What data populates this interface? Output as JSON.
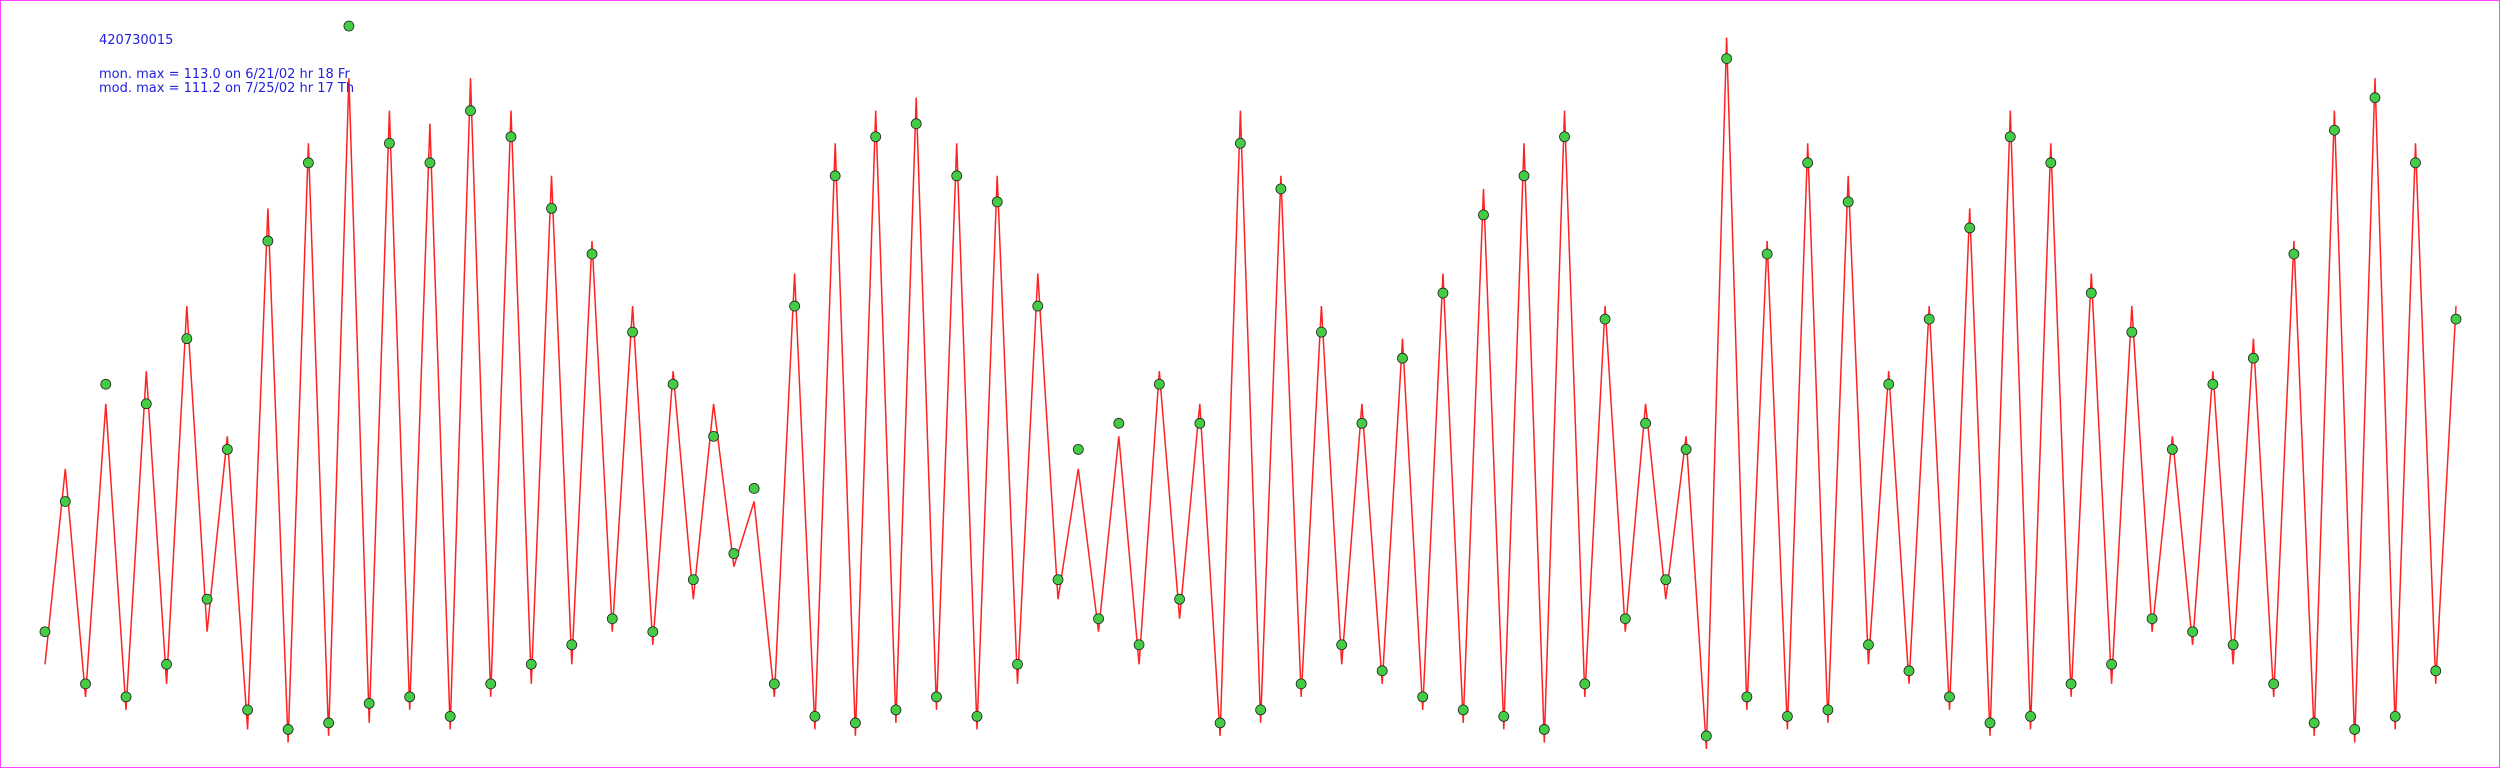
{
  "chart_data": {
    "type": "line",
    "title": "420730015",
    "annotations": [
      "mon. max =  113.0 on 6/21/02 hr 18 Fr",
      "mod. max =  111.2 on 7/25/02 hr 17 Th"
    ],
    "ylim": [
      0,
      115
    ],
    "series": [
      {
        "color": "#ff2222",
        "style": "line",
        "values": [
          15,
          45,
          10,
          55,
          8,
          60,
          12,
          70,
          20,
          50,
          5,
          85,
          3,
          95,
          4,
          105,
          6,
          100,
          8,
          98,
          5,
          105,
          10,
          100,
          12,
          90,
          15,
          80,
          20,
          70,
          18,
          60,
          25,
          55,
          30,
          40,
          10,
          75,
          5,
          95,
          4,
          100,
          6,
          102,
          8,
          95,
          5,
          90,
          12,
          75,
          25,
          45,
          20,
          50,
          15,
          60,
          22,
          55,
          4,
          100,
          6,
          90,
          10,
          70,
          15,
          55,
          12,
          65,
          8,
          75,
          6,
          88,
          5,
          95,
          3,
          100,
          10,
          70,
          20,
          55,
          25,
          50,
          2,
          111.2,
          8,
          80,
          5,
          95,
          6,
          90,
          15,
          60,
          12,
          70,
          8,
          85,
          4,
          100,
          5,
          95,
          10,
          75,
          12,
          70,
          20,
          50,
          18,
          60,
          15,
          65,
          10,
          80,
          4,
          100,
          3,
          105,
          5,
          95,
          12,
          70
        ]
      },
      {
        "color": "#44cc44",
        "style": "markers",
        "values": [
          20,
          40,
          12,
          58,
          10,
          55,
          15,
          65,
          25,
          48,
          8,
          80,
          5,
          92,
          6,
          113,
          9,
          95,
          10,
          92,
          7,
          100,
          12,
          96,
          15,
          85,
          18,
          78,
          22,
          66,
          20,
          58,
          28,
          50,
          32,
          42,
          12,
          70,
          7,
          90,
          6,
          96,
          8,
          98,
          10,
          90,
          7,
          86,
          15,
          70,
          28,
          48,
          22,
          52,
          18,
          58,
          25,
          52,
          6,
          95,
          8,
          88,
          12,
          66,
          18,
          52,
          14,
          62,
          10,
          72,
          8,
          84,
          7,
          90,
          5,
          96,
          12,
          68,
          22,
          52,
          28,
          48,
          4,
          108,
          10,
          78,
          7,
          92,
          8,
          86,
          18,
          58,
          14,
          68,
          10,
          82,
          6,
          96,
          7,
          92,
          12,
          72,
          15,
          66,
          22,
          48,
          20,
          58,
          18,
          62,
          12,
          78,
          6,
          97,
          5,
          102,
          7,
          92,
          14,
          68
        ]
      }
    ]
  }
}
